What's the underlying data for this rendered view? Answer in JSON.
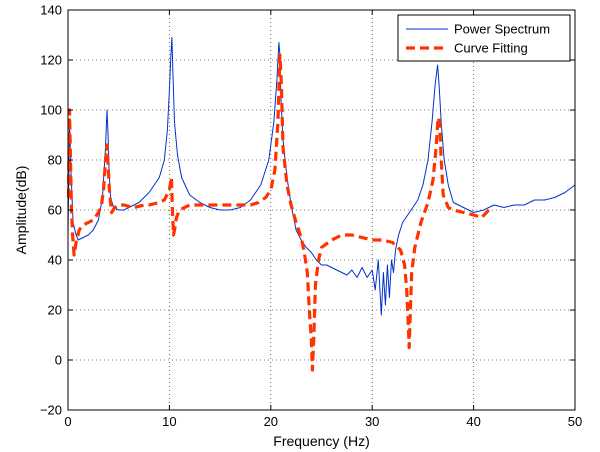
{
  "chart_data": {
    "type": "line",
    "title": "",
    "xlabel": "Frequency (Hz)",
    "ylabel": "Amplitude(dB)",
    "xlim": [
      0,
      50
    ],
    "ylim": [
      -20,
      140
    ],
    "xticks": [
      0,
      10,
      20,
      30,
      40,
      50
    ],
    "yticks": [
      -20,
      0,
      20,
      40,
      60,
      80,
      100,
      120,
      140
    ],
    "xtick_labels": [
      "0",
      "10",
      "20",
      "30",
      "40",
      "50"
    ],
    "ytick_labels": [
      "−20",
      "0",
      "20",
      "40",
      "60",
      "80",
      "100",
      "120",
      "140"
    ],
    "grid": true,
    "legend_position": "top-right",
    "series": [
      {
        "name": "Power Spectrum",
        "color": "#0033cc",
        "style": "solid",
        "x": [
          0,
          0.15,
          0.3,
          0.5,
          0.8,
          1.0,
          1.5,
          2.0,
          2.5,
          3.0,
          3.4,
          3.7,
          3.85,
          3.95,
          4.05,
          4.2,
          4.5,
          5.0,
          5.5,
          6.0,
          7.0,
          8.0,
          9.0,
          9.5,
          9.8,
          10.0,
          10.15,
          10.25,
          10.35,
          10.5,
          10.8,
          11.2,
          12.0,
          13.0,
          14.0,
          15.0,
          16.0,
          17.0,
          18.0,
          19.0,
          19.8,
          20.3,
          20.6,
          20.8,
          20.9,
          21.0,
          21.2,
          21.6,
          22.0,
          22.5,
          23.0,
          23.5,
          24.0,
          24.5,
          25.0,
          25.5,
          26.0,
          26.5,
          27.0,
          27.5,
          28.0,
          28.5,
          29.0,
          29.5,
          30.0,
          30.3,
          30.6,
          30.9,
          31.1,
          31.3,
          31.5,
          31.7,
          31.9,
          32.1,
          32.3,
          32.6,
          33.0,
          33.5,
          34.0,
          34.5,
          35.0,
          35.5,
          35.9,
          36.2,
          36.45,
          36.6,
          36.8,
          37.1,
          37.5,
          38.0,
          38.5,
          39.0,
          39.5,
          40.0,
          41.0,
          42.0,
          43.0,
          44.0,
          45.0,
          46.0,
          47.0,
          48.0,
          49.0,
          50.0
        ],
        "y": [
          50,
          95,
          75,
          55,
          50,
          48,
          49,
          50,
          52,
          56,
          65,
          85,
          100,
          90,
          75,
          65,
          61,
          60,
          60,
          61,
          63,
          67,
          73,
          80,
          92,
          108,
          122,
          129,
          115,
          95,
          82,
          73,
          66,
          63,
          61,
          60,
          60,
          61,
          64,
          70,
          80,
          95,
          112,
          127,
          122,
          105,
          88,
          73,
          62,
          52,
          48,
          45,
          43,
          40,
          38,
          38,
          37,
          36,
          35,
          34,
          36,
          33,
          37,
          33,
          36,
          28,
          40,
          18,
          35,
          22,
          38,
          25,
          40,
          35,
          44,
          50,
          55,
          58,
          61,
          64,
          70,
          80,
          95,
          110,
          118,
          110,
          95,
          80,
          70,
          63,
          62,
          61,
          60,
          59,
          60,
          62,
          61,
          62,
          62,
          64,
          64,
          65,
          67,
          70
        ]
      },
      {
        "name": "Curve Fitting",
        "color": "#ff3300",
        "style": "dashed",
        "x": [
          0.05,
          0.15,
          0.25,
          0.35,
          0.45,
          0.6,
          0.8,
          1.1,
          1.5,
          2.0,
          2.5,
          3.0,
          3.3,
          3.5,
          3.7,
          3.85,
          3.95,
          4.1,
          4.3,
          4.6,
          5.0,
          5.5,
          6.5,
          7.5,
          8.0,
          9.0,
          9.5,
          10.0,
          10.2,
          10.3,
          10.4,
          10.5,
          10.7,
          11.0,
          12.0,
          13.0,
          14.0,
          15.0,
          16.0,
          17.0,
          18.0,
          18.8,
          19.5,
          20.0,
          20.4,
          20.7,
          20.9,
          21.05,
          21.2,
          21.6,
          22.0,
          22.5,
          23.0,
          23.3,
          23.6,
          23.8,
          24.0,
          24.1,
          24.25,
          24.4,
          24.7,
          25.0,
          26.0,
          27.0,
          28.0,
          29.0,
          30.0,
          31.0,
          32.0,
          32.8,
          33.2,
          33.4,
          33.55,
          33.65,
          33.75,
          33.9,
          34.2,
          34.8,
          35.5,
          36.0,
          36.3,
          36.5,
          36.65,
          36.8,
          37.0,
          37.5,
          38.0,
          39.0,
          40.0,
          40.8,
          41.5
        ],
        "y": [
          65,
          100,
          80,
          60,
          50,
          42,
          47,
          52,
          54,
          55,
          56,
          59,
          62,
          68,
          80,
          86,
          78,
          67,
          59,
          61,
          62,
          62,
          61,
          62,
          62,
          63,
          64,
          68,
          73,
          60,
          50,
          52,
          57,
          60,
          62,
          62,
          62,
          62,
          62,
          62,
          62,
          63,
          65,
          68,
          76,
          95,
          122,
          110,
          85,
          70,
          62,
          55,
          49,
          43,
          35,
          20,
          8,
          -4,
          10,
          30,
          40,
          45,
          48,
          50,
          50,
          49,
          48,
          48,
          47,
          44,
          38,
          28,
          15,
          5,
          18,
          35,
          45,
          55,
          63,
          72,
          85,
          97,
          95,
          80,
          66,
          61,
          60,
          59,
          58,
          57,
          60
        ]
      }
    ]
  }
}
